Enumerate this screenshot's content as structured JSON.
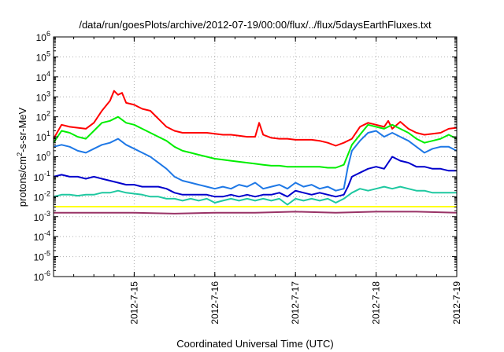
{
  "chart_data": {
    "type": "line",
    "title": "/data/run/goesPlots/archive/2012-07-19/00:00/flux/../flux/5daysEarthFluxes.txt",
    "xlabel": "Coordinated Universal Time (UTC)",
    "ylabel_base": "protons/cm",
    "ylabel_sup": "2",
    "ylabel_rest": "-s-sr-MeV",
    "y_scale": "log",
    "ylim_exp": [
      -6,
      6
    ],
    "xlim": [
      0,
      5.0
    ],
    "x_ticks": [
      {
        "x": 1,
        "label": "2012-7-15"
      },
      {
        "x": 2,
        "label": "2012-7-16"
      },
      {
        "x": 3,
        "label": "2012-7-17"
      },
      {
        "x": 4,
        "label": "2012-7-18"
      },
      {
        "x": 5,
        "label": "2012-7-19"
      }
    ],
    "grid": true,
    "series": [
      {
        "color": "#ff0000",
        "points": [
          [
            0,
            0.9
          ],
          [
            0.1,
            1.6
          ],
          [
            0.2,
            1.5
          ],
          [
            0.3,
            1.45
          ],
          [
            0.4,
            1.4
          ],
          [
            0.5,
            1.7
          ],
          [
            0.6,
            2.3
          ],
          [
            0.7,
            2.8
          ],
          [
            0.75,
            3.3
          ],
          [
            0.8,
            3.1
          ],
          [
            0.85,
            3.2
          ],
          [
            0.9,
            2.7
          ],
          [
            1.0,
            2.6
          ],
          [
            1.1,
            2.4
          ],
          [
            1.2,
            2.3
          ],
          [
            1.3,
            1.9
          ],
          [
            1.4,
            1.5
          ],
          [
            1.5,
            1.3
          ],
          [
            1.6,
            1.2
          ],
          [
            1.7,
            1.2
          ],
          [
            1.8,
            1.2
          ],
          [
            1.9,
            1.2
          ],
          [
            2.0,
            1.15
          ],
          [
            2.1,
            1.1
          ],
          [
            2.2,
            1.1
          ],
          [
            2.3,
            1.05
          ],
          [
            2.4,
            1.0
          ],
          [
            2.5,
            1.0
          ],
          [
            2.55,
            1.7
          ],
          [
            2.6,
            1.1
          ],
          [
            2.7,
            0.95
          ],
          [
            2.8,
            0.9
          ],
          [
            2.9,
            0.9
          ],
          [
            3.0,
            0.85
          ],
          [
            3.1,
            0.85
          ],
          [
            3.2,
            0.85
          ],
          [
            3.3,
            0.8
          ],
          [
            3.4,
            0.7
          ],
          [
            3.5,
            0.55
          ],
          [
            3.6,
            0.7
          ],
          [
            3.7,
            0.9
          ],
          [
            3.8,
            1.5
          ],
          [
            3.9,
            1.7
          ],
          [
            4.0,
            1.6
          ],
          [
            4.1,
            1.5
          ],
          [
            4.15,
            1.8
          ],
          [
            4.2,
            1.4
          ],
          [
            4.3,
            1.75
          ],
          [
            4.4,
            1.4
          ],
          [
            4.5,
            1.2
          ],
          [
            4.6,
            1.1
          ],
          [
            4.7,
            1.15
          ],
          [
            4.8,
            1.2
          ],
          [
            4.9,
            1.4
          ],
          [
            5.0,
            1.45
          ]
        ]
      },
      {
        "color": "#00ee00",
        "points": [
          [
            0,
            0.7
          ],
          [
            0.1,
            1.3
          ],
          [
            0.2,
            1.2
          ],
          [
            0.3,
            1.0
          ],
          [
            0.4,
            0.9
          ],
          [
            0.5,
            1.3
          ],
          [
            0.6,
            1.7
          ],
          [
            0.7,
            1.8
          ],
          [
            0.8,
            2.0
          ],
          [
            0.9,
            1.7
          ],
          [
            1.0,
            1.6
          ],
          [
            1.1,
            1.4
          ],
          [
            1.2,
            1.2
          ],
          [
            1.3,
            1.0
          ],
          [
            1.4,
            0.8
          ],
          [
            1.5,
            0.5
          ],
          [
            1.6,
            0.3
          ],
          [
            1.7,
            0.2
          ],
          [
            1.8,
            0.1
          ],
          [
            1.9,
            0.0
          ],
          [
            2.0,
            -0.1
          ],
          [
            2.1,
            -0.15
          ],
          [
            2.2,
            -0.2
          ],
          [
            2.3,
            -0.25
          ],
          [
            2.4,
            -0.3
          ],
          [
            2.5,
            -0.35
          ],
          [
            2.6,
            -0.4
          ],
          [
            2.7,
            -0.45
          ],
          [
            2.8,
            -0.45
          ],
          [
            2.9,
            -0.5
          ],
          [
            3.0,
            -0.5
          ],
          [
            3.1,
            -0.5
          ],
          [
            3.2,
            -0.5
          ],
          [
            3.3,
            -0.5
          ],
          [
            3.4,
            -0.55
          ],
          [
            3.5,
            -0.55
          ],
          [
            3.6,
            -0.4
          ],
          [
            3.7,
            0.6
          ],
          [
            3.8,
            1.1
          ],
          [
            3.9,
            1.6
          ],
          [
            4.0,
            1.5
          ],
          [
            4.1,
            1.4
          ],
          [
            4.2,
            1.6
          ],
          [
            4.3,
            1.4
          ],
          [
            4.4,
            1.2
          ],
          [
            4.5,
            0.9
          ],
          [
            4.6,
            0.7
          ],
          [
            4.7,
            0.8
          ],
          [
            4.8,
            0.9
          ],
          [
            4.9,
            1.1
          ],
          [
            5.0,
            0.9
          ]
        ]
      },
      {
        "color": "#1e78e6",
        "points": [
          [
            0,
            0.5
          ],
          [
            0.1,
            0.6
          ],
          [
            0.2,
            0.5
          ],
          [
            0.3,
            0.3
          ],
          [
            0.4,
            0.2
          ],
          [
            0.5,
            0.4
          ],
          [
            0.6,
            0.6
          ],
          [
            0.7,
            0.7
          ],
          [
            0.8,
            0.9
          ],
          [
            0.9,
            0.6
          ],
          [
            1.0,
            0.4
          ],
          [
            1.1,
            0.2
          ],
          [
            1.2,
            0.0
          ],
          [
            1.3,
            -0.3
          ],
          [
            1.4,
            -0.6
          ],
          [
            1.5,
            -1.0
          ],
          [
            1.6,
            -1.2
          ],
          [
            1.7,
            -1.3
          ],
          [
            1.8,
            -1.4
          ],
          [
            1.9,
            -1.5
          ],
          [
            2.0,
            -1.6
          ],
          [
            2.1,
            -1.5
          ],
          [
            2.2,
            -1.6
          ],
          [
            2.3,
            -1.4
          ],
          [
            2.4,
            -1.5
          ],
          [
            2.5,
            -1.3
          ],
          [
            2.6,
            -1.6
          ],
          [
            2.7,
            -1.5
          ],
          [
            2.8,
            -1.4
          ],
          [
            2.9,
            -1.6
          ],
          [
            3.0,
            -1.3
          ],
          [
            3.1,
            -1.5
          ],
          [
            3.2,
            -1.4
          ],
          [
            3.3,
            -1.6
          ],
          [
            3.4,
            -1.5
          ],
          [
            3.5,
            -1.7
          ],
          [
            3.6,
            -1.6
          ],
          [
            3.65,
            -0.5
          ],
          [
            3.7,
            0.3
          ],
          [
            3.8,
            0.8
          ],
          [
            3.9,
            1.2
          ],
          [
            4.0,
            1.3
          ],
          [
            4.1,
            1.0
          ],
          [
            4.2,
            1.2
          ],
          [
            4.3,
            1.0
          ],
          [
            4.4,
            0.8
          ],
          [
            4.5,
            0.5
          ],
          [
            4.6,
            0.2
          ],
          [
            4.7,
            0.4
          ],
          [
            4.8,
            0.5
          ],
          [
            4.9,
            0.5
          ],
          [
            5.0,
            0.3
          ]
        ]
      },
      {
        "color": "#0000cc",
        "points": [
          [
            0,
            -1.0
          ],
          [
            0.1,
            -0.9
          ],
          [
            0.2,
            -1.0
          ],
          [
            0.3,
            -1.0
          ],
          [
            0.4,
            -1.1
          ],
          [
            0.5,
            -1.0
          ],
          [
            0.6,
            -1.1
          ],
          [
            0.7,
            -1.2
          ],
          [
            0.8,
            -1.3
          ],
          [
            0.9,
            -1.4
          ],
          [
            1.0,
            -1.4
          ],
          [
            1.1,
            -1.5
          ],
          [
            1.2,
            -1.5
          ],
          [
            1.3,
            -1.5
          ],
          [
            1.4,
            -1.6
          ],
          [
            1.5,
            -1.8
          ],
          [
            1.6,
            -1.9
          ],
          [
            1.7,
            -1.9
          ],
          [
            1.8,
            -1.9
          ],
          [
            1.9,
            -1.9
          ],
          [
            2.0,
            -2.0
          ],
          [
            2.1,
            -2.0
          ],
          [
            2.2,
            -1.9
          ],
          [
            2.3,
            -2.0
          ],
          [
            2.4,
            -1.9
          ],
          [
            2.5,
            -2.0
          ],
          [
            2.6,
            -1.9
          ],
          [
            2.7,
            -1.9
          ],
          [
            2.8,
            -1.8
          ],
          [
            2.9,
            -2.0
          ],
          [
            3.0,
            -1.7
          ],
          [
            3.1,
            -1.8
          ],
          [
            3.2,
            -1.9
          ],
          [
            3.3,
            -1.8
          ],
          [
            3.4,
            -1.9
          ],
          [
            3.5,
            -2.0
          ],
          [
            3.6,
            -1.9
          ],
          [
            3.65,
            -1.5
          ],
          [
            3.7,
            -1.0
          ],
          [
            3.8,
            -0.8
          ],
          [
            3.9,
            -0.6
          ],
          [
            4.0,
            -0.5
          ],
          [
            4.1,
            -0.6
          ],
          [
            4.2,
            0.0
          ],
          [
            4.3,
            -0.2
          ],
          [
            4.4,
            -0.3
          ],
          [
            4.5,
            -0.5
          ],
          [
            4.6,
            -0.5
          ],
          [
            4.7,
            -0.6
          ],
          [
            4.8,
            -0.6
          ],
          [
            4.9,
            -0.7
          ],
          [
            5.0,
            -0.7
          ]
        ]
      },
      {
        "color": "#1ec8a0",
        "points": [
          [
            0,
            -2.0
          ],
          [
            0.1,
            -1.9
          ],
          [
            0.2,
            -1.9
          ],
          [
            0.3,
            -1.95
          ],
          [
            0.4,
            -1.9
          ],
          [
            0.5,
            -1.9
          ],
          [
            0.6,
            -1.8
          ],
          [
            0.7,
            -1.8
          ],
          [
            0.8,
            -1.7
          ],
          [
            0.9,
            -1.8
          ],
          [
            1.0,
            -1.85
          ],
          [
            1.1,
            -1.9
          ],
          [
            1.2,
            -2.0
          ],
          [
            1.3,
            -2.0
          ],
          [
            1.4,
            -2.1
          ],
          [
            1.5,
            -2.1
          ],
          [
            1.6,
            -2.2
          ],
          [
            1.7,
            -2.1
          ],
          [
            1.8,
            -2.2
          ],
          [
            1.9,
            -2.1
          ],
          [
            2.0,
            -2.3
          ],
          [
            2.1,
            -2.2
          ],
          [
            2.2,
            -2.1
          ],
          [
            2.3,
            -2.2
          ],
          [
            2.4,
            -2.1
          ],
          [
            2.5,
            -2.2
          ],
          [
            2.6,
            -2.1
          ],
          [
            2.7,
            -2.2
          ],
          [
            2.8,
            -2.1
          ],
          [
            2.9,
            -2.4
          ],
          [
            3.0,
            -2.1
          ],
          [
            3.1,
            -2.2
          ],
          [
            3.2,
            -2.1
          ],
          [
            3.3,
            -2.2
          ],
          [
            3.4,
            -2.1
          ],
          [
            3.5,
            -2.3
          ],
          [
            3.6,
            -2.1
          ],
          [
            3.7,
            -1.8
          ],
          [
            3.8,
            -1.6
          ],
          [
            3.9,
            -1.7
          ],
          [
            4.0,
            -1.6
          ],
          [
            4.1,
            -1.5
          ],
          [
            4.2,
            -1.6
          ],
          [
            4.3,
            -1.5
          ],
          [
            4.4,
            -1.6
          ],
          [
            4.5,
            -1.7
          ],
          [
            4.6,
            -1.7
          ],
          [
            4.7,
            -1.8
          ],
          [
            4.8,
            -1.8
          ],
          [
            4.9,
            -1.8
          ],
          [
            5.0,
            -1.8
          ]
        ]
      },
      {
        "color": "#ffff00",
        "points": [
          [
            0,
            -2.5
          ],
          [
            1.0,
            -2.5
          ],
          [
            2.0,
            -2.5
          ],
          [
            3.0,
            -2.5
          ],
          [
            4.0,
            -2.5
          ],
          [
            5.0,
            -2.5
          ]
        ]
      },
      {
        "color": "#993366",
        "points": [
          [
            0,
            -2.8
          ],
          [
            0.5,
            -2.8
          ],
          [
            1.0,
            -2.8
          ],
          [
            1.5,
            -2.85
          ],
          [
            2.0,
            -2.8
          ],
          [
            2.5,
            -2.8
          ],
          [
            3.0,
            -2.75
          ],
          [
            3.5,
            -2.8
          ],
          [
            4.0,
            -2.75
          ],
          [
            4.5,
            -2.75
          ],
          [
            5.0,
            -2.8
          ]
        ]
      }
    ]
  }
}
